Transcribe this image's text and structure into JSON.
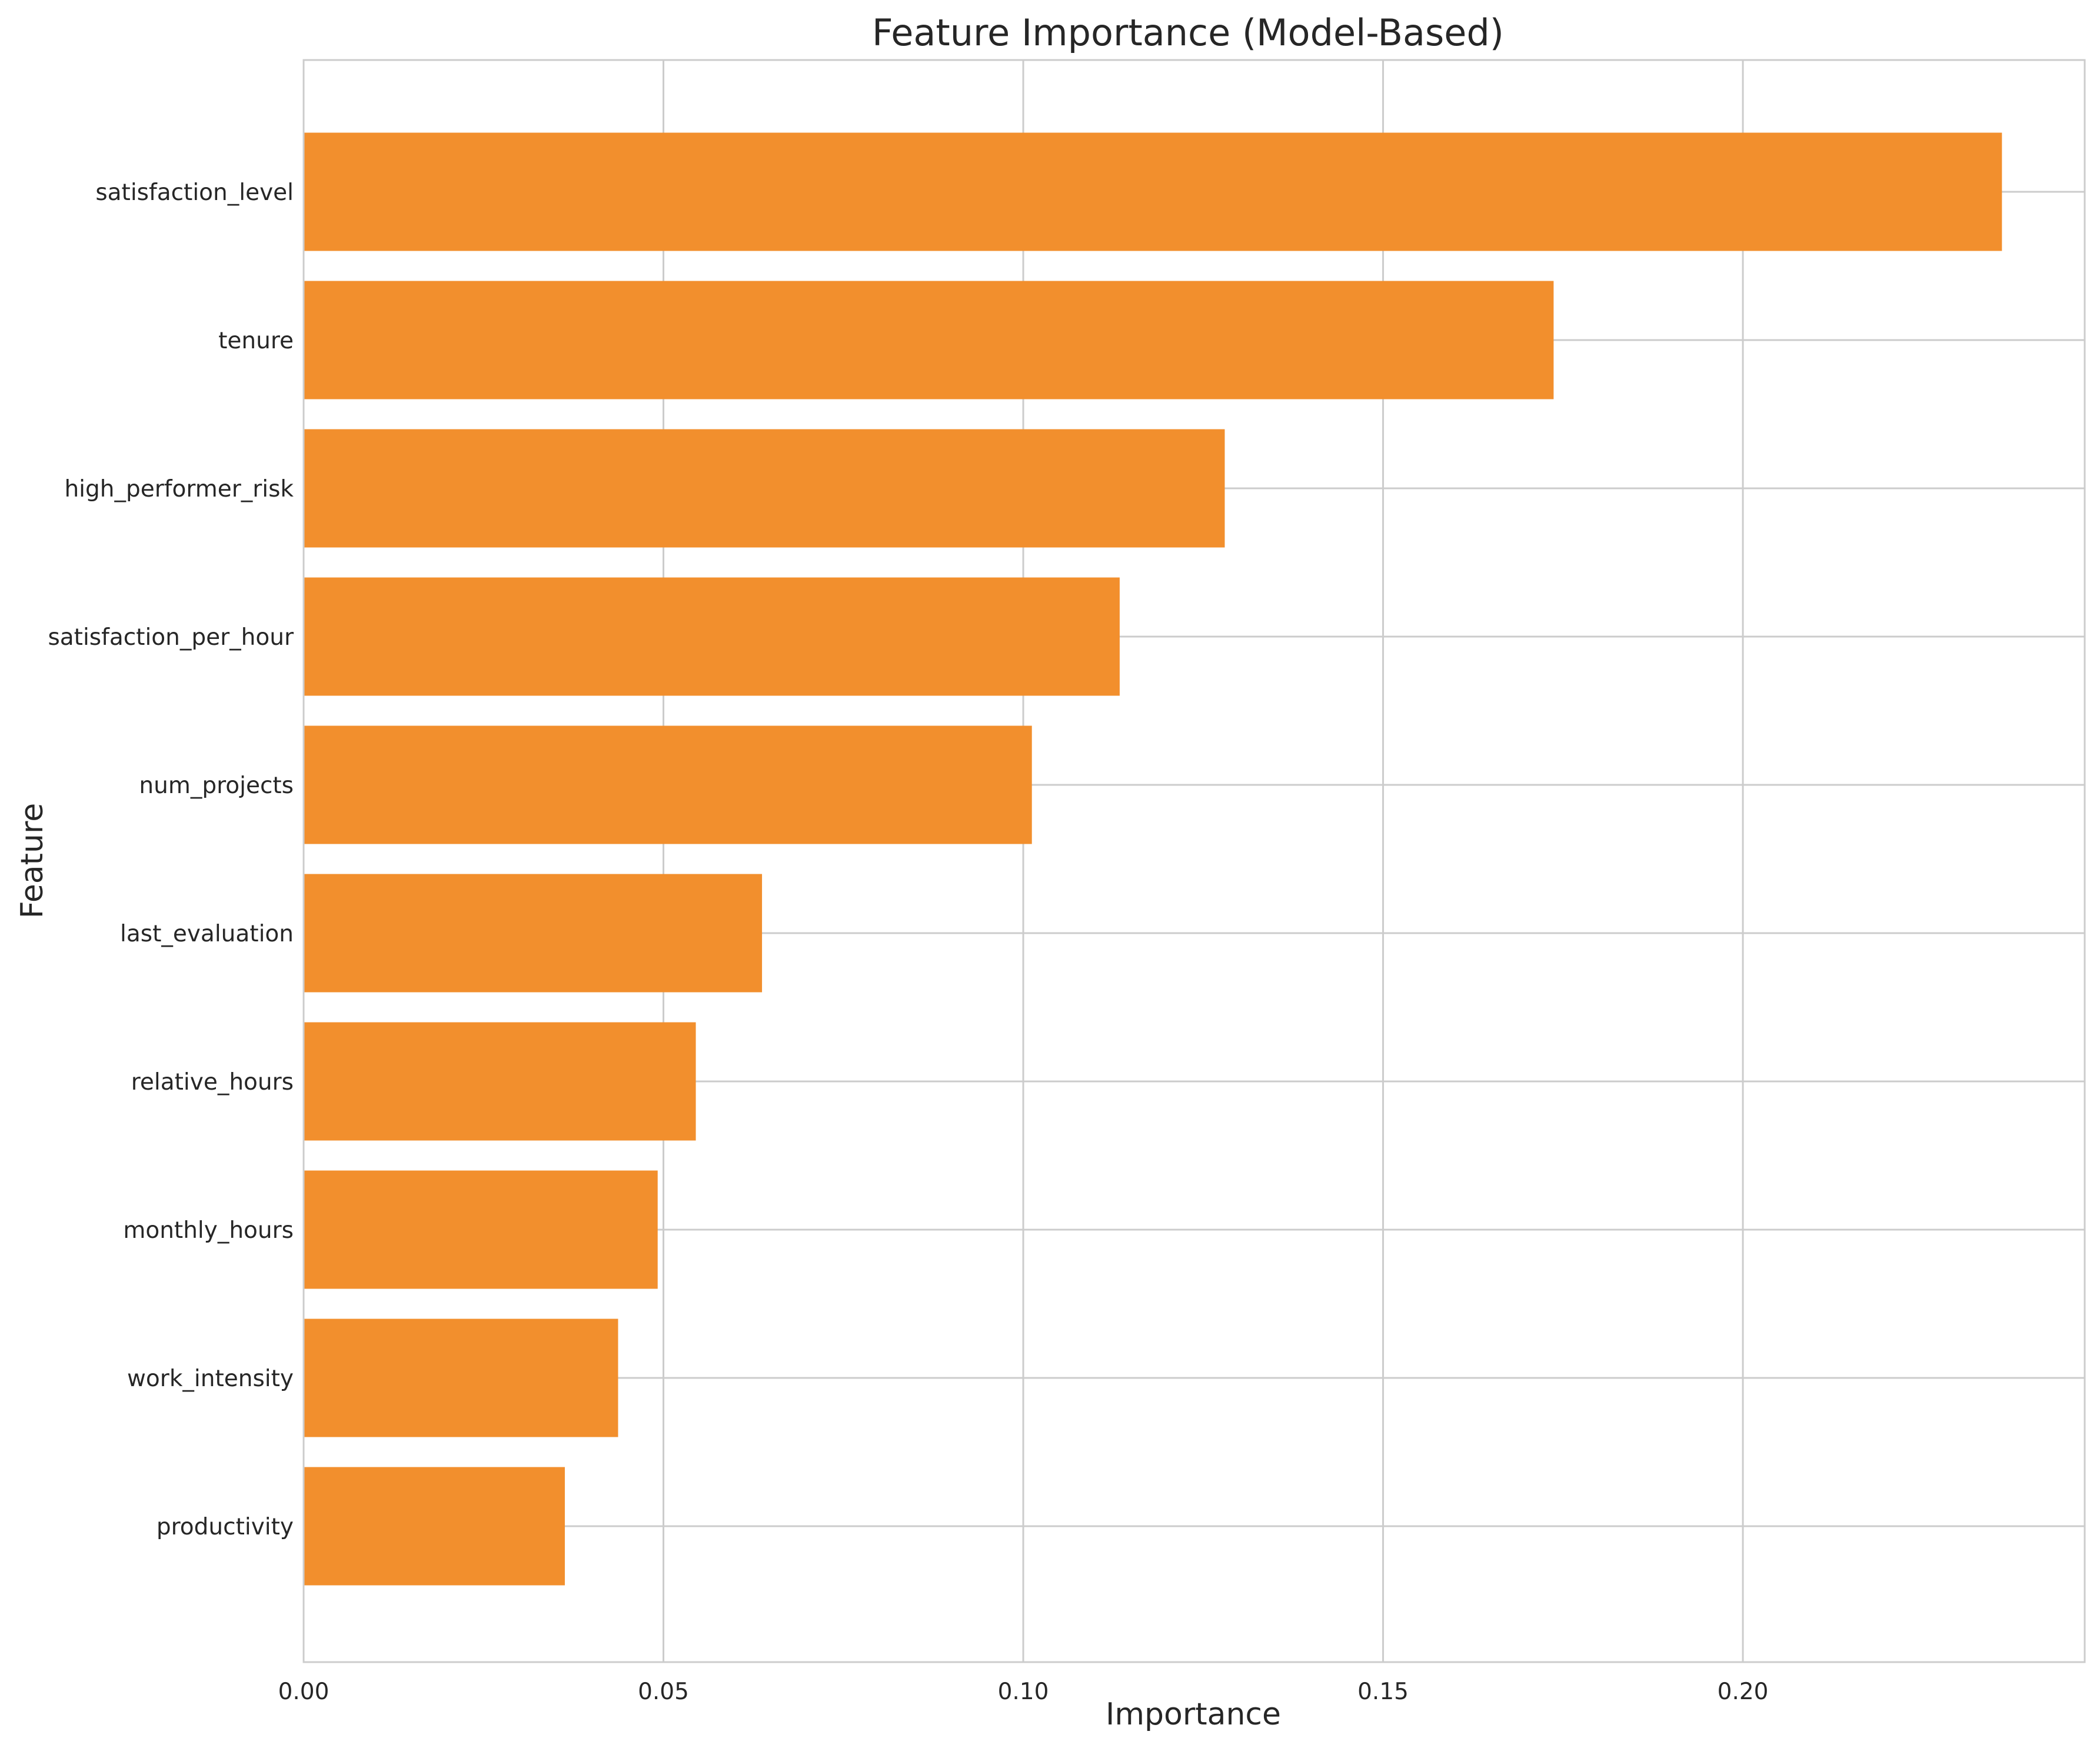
{
  "chart_data": {
    "type": "bar",
    "orientation": "horizontal",
    "title": "Feature Importance (Model-Based)",
    "xlabel": "Importance",
    "ylabel": "Feature",
    "categories": [
      "satisfaction_level",
      "tenure",
      "high_performer_risk",
      "satisfaction_per_hour",
      "num_projects",
      "last_evaluation",
      "relative_hours",
      "monthly_hours",
      "work_intensity",
      "productivity"
    ],
    "values": [
      0.236,
      0.1737,
      0.128,
      0.1134,
      0.1012,
      0.0637,
      0.0545,
      0.0492,
      0.0437,
      0.0363
    ],
    "xlim": [
      0,
      0.2475
    ],
    "xticks": [
      0.0,
      0.05,
      0.1,
      0.15,
      0.2
    ],
    "xtick_labels": [
      "0.00",
      "0.05",
      "0.10",
      "0.15",
      "0.20"
    ],
    "grid": true,
    "bar_color": "#f28f2d"
  }
}
